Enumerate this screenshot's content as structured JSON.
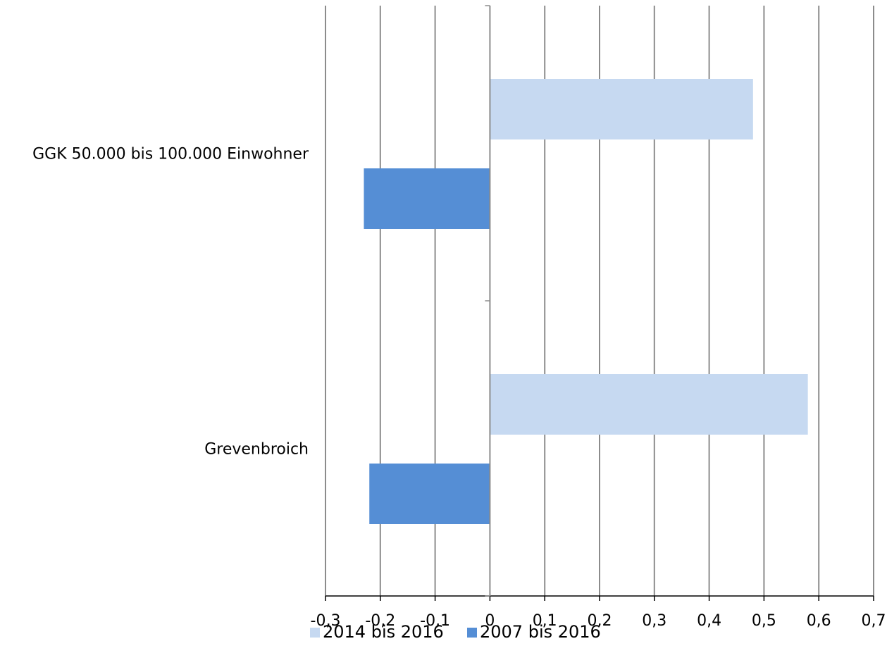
{
  "chart_data": {
    "type": "bar",
    "orientation": "horizontal",
    "categories": [
      "GGK 50.000 bis 100.000 Einwohner",
      "Grevenbroich"
    ],
    "series": [
      {
        "name": "2014 bis 2016",
        "color": "#c6d9f1",
        "values": [
          0.48,
          0.58
        ]
      },
      {
        "name": "2007 bis 2016",
        "color": "#558ed5",
        "values": [
          -0.23,
          -0.22
        ]
      }
    ],
    "xlim": [
      -0.3,
      0.7
    ],
    "xticks": [
      "-0,3",
      "-0,2",
      "-0,1",
      "0",
      "0,1",
      "0,2",
      "0,3",
      "0,4",
      "0,5",
      "0,6",
      "0,7"
    ],
    "grid": "vertical",
    "legend_position": "bottom",
    "title": "",
    "xlabel": "",
    "ylabel": ""
  }
}
